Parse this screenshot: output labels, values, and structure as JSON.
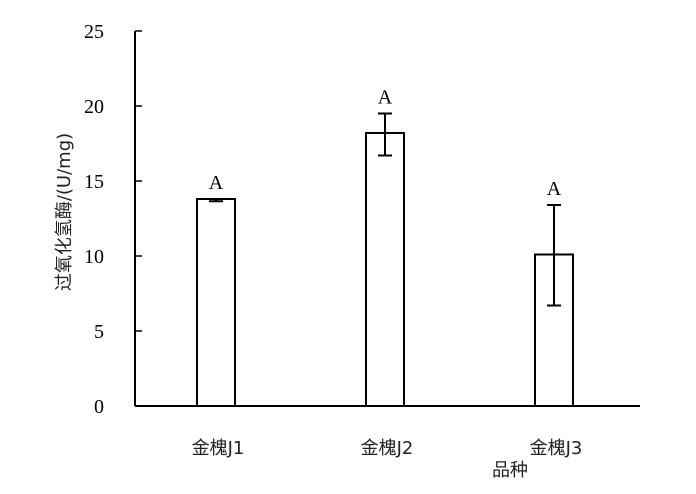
{
  "chart_data": {
    "type": "bar",
    "title": "",
    "xlabel": "品种",
    "ylabel": "过氧化氢酶/(U/mg)",
    "ylim": [
      0,
      25
    ],
    "yticks": [
      "0",
      "5",
      "10",
      "15",
      "20",
      "25"
    ],
    "categories": [
      "金槐J1",
      "金槐J2",
      "金槐J3"
    ],
    "values": [
      13.8,
      18.2,
      10.1
    ],
    "error_low": [
      13.65,
      16.7,
      6.7
    ],
    "error_high": [
      13.8,
      19.5,
      13.4
    ],
    "significance_labels": [
      "A",
      "A",
      "A"
    ],
    "grid": false,
    "legend": "none",
    "colors": {
      "bar_fill": "#ffffff",
      "stroke": "#000000"
    }
  }
}
